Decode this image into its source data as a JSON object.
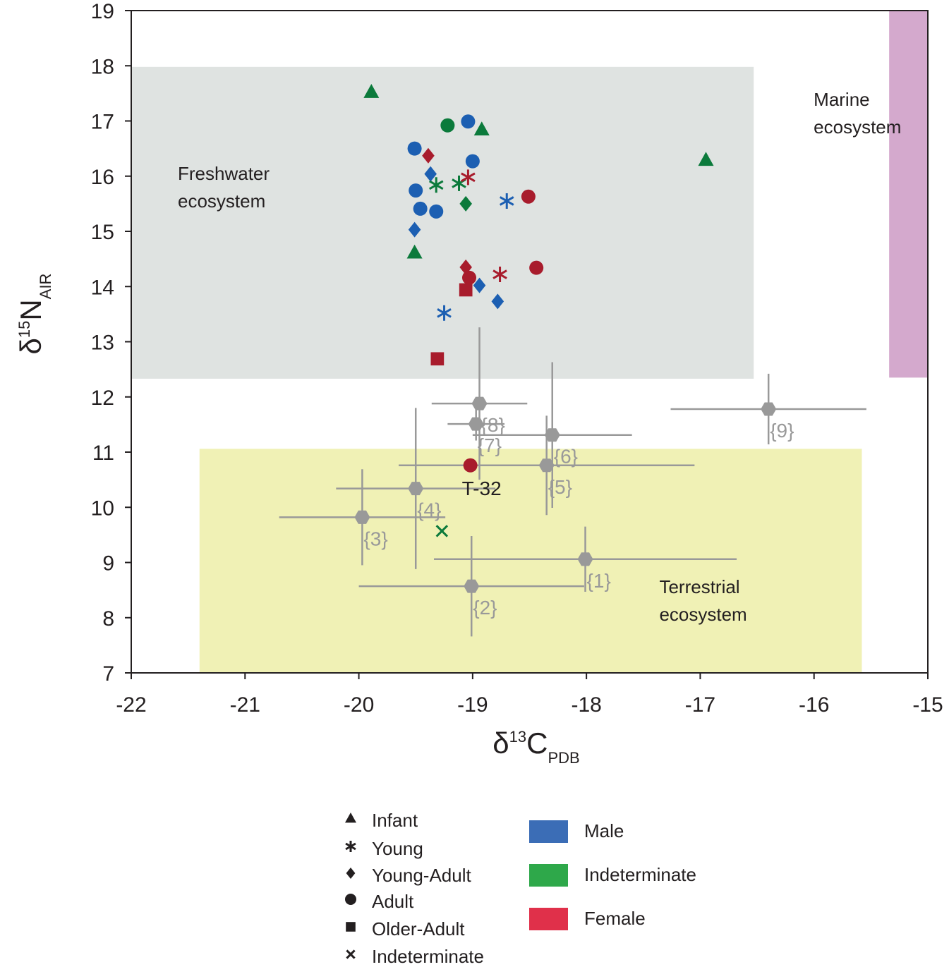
{
  "chart_data": {
    "type": "scatter",
    "x_label": {
      "base": "δ",
      "sup": "13",
      "main": "C",
      "sub": "PDB"
    },
    "y_label": {
      "base": "δ",
      "sup": "15",
      "main": "N",
      "sub": "AIR"
    },
    "xlim": [
      -22,
      -15
    ],
    "xticks": [
      -22,
      -21,
      -20,
      -19,
      -18,
      -17,
      -16,
      -15
    ],
    "ylim": [
      7,
      19
    ],
    "yticks": [
      7,
      8,
      9,
      10,
      11,
      12,
      13,
      14,
      15,
      16,
      17,
      18,
      19
    ],
    "regions": [
      {
        "lines": [
          "Freshwater",
          "ecosystem"
        ],
        "color": "#dfe3e1",
        "xlim": [
          -22,
          -16.53
        ],
        "ylim": [
          12.33,
          17.98
        ]
      },
      {
        "lines": [
          "Marine",
          "ecosystem"
        ],
        "color": "#d4a9cd",
        "xlim": [
          -15.34,
          -15
        ],
        "ylim": [
          12.35,
          19
        ]
      },
      {
        "lines": [
          "Terrestrial",
          "ecosystem"
        ],
        "color": "#f0f1b5",
        "xlim": [
          -21.4,
          -15.58
        ],
        "ylim": [
          7,
          11.06
        ]
      }
    ],
    "references": {
      "color": "#999999",
      "labels": [
        "{1}",
        "{2}",
        "{3}",
        "{4}",
        "{5}",
        "{6}",
        "{7}",
        "{8}",
        "{9}"
      ],
      "x": [
        -18.01,
        -19.01,
        -19.97,
        -19.5,
        -18.35,
        -18.3,
        -18.97,
        -18.94,
        -16.4
      ],
      "values": [
        9.06,
        8.57,
        9.82,
        10.34,
        10.76,
        11.31,
        11.51,
        11.88,
        11.78
      ],
      "xerr": [
        1.33,
        0.99,
        0.73,
        0.7,
        1.3,
        0.7,
        0.25,
        0.42,
        0.86
      ],
      "yerr": [
        0.59,
        0.91,
        0.87,
        1.46,
        0.9,
        1.32,
        0.3,
        1.38,
        0.64
      ]
    },
    "series": [
      {
        "age": "Infant",
        "sex": "Indeterminate",
        "color": "#0b7a3b",
        "x": [
          -19.89,
          -18.92,
          -16.95,
          -19.51
        ],
        "values": [
          17.53,
          16.85,
          16.3,
          14.62
        ]
      },
      {
        "age": "Adult",
        "sex": "Male",
        "color": "#1c5fb2",
        "x": [
          -19.04,
          -19.51,
          -19.0,
          -19.5,
          -19.46,
          -19.32
        ],
        "values": [
          16.99,
          16.5,
          16.27,
          15.74,
          15.41,
          15.36
        ]
      },
      {
        "age": "Adult",
        "sex": "Indeterminate",
        "color": "#0b7a3b",
        "x": [
          -19.22
        ],
        "values": [
          16.92
        ]
      },
      {
        "age": "Adult",
        "sex": "Female",
        "color": "#a81c2c",
        "x": [
          -18.51,
          -18.44,
          -19.03,
          -19.02
        ],
        "values": [
          15.63,
          14.34,
          14.16,
          10.76
        ],
        "point_labels": [
          null,
          null,
          null,
          "T-32"
        ]
      },
      {
        "age": "Young-Adult",
        "sex": "Male",
        "color": "#1c5fb2",
        "x": [
          -19.37,
          -19.51,
          -18.94,
          -18.78
        ],
        "values": [
          16.04,
          15.03,
          14.02,
          13.73
        ]
      },
      {
        "age": "Young-Adult",
        "sex": "Female",
        "color": "#a81c2c",
        "x": [
          -19.39,
          -19.06
        ],
        "values": [
          16.37,
          14.35
        ]
      },
      {
        "age": "Young-Adult",
        "sex": "Indeterminate",
        "color": "#0b7a3b",
        "x": [
          -19.06
        ],
        "values": [
          15.5
        ]
      },
      {
        "age": "Young",
        "sex": "Indeterminate",
        "color": "#0b7a3b",
        "x": [
          -19.32,
          -19.12
        ],
        "values": [
          15.84,
          15.87
        ]
      },
      {
        "age": "Young",
        "sex": "Female",
        "color": "#a81c2c",
        "x": [
          -19.04,
          -18.76
        ],
        "values": [
          15.98,
          14.22
        ]
      },
      {
        "age": "Young",
        "sex": "Male",
        "color": "#1c5fb2",
        "x": [
          -18.7,
          -19.25
        ],
        "values": [
          15.55,
          13.52
        ]
      },
      {
        "age": "Older-Adult",
        "sex": "Female",
        "color": "#a81c2c",
        "x": [
          -19.06,
          -19.31
        ],
        "values": [
          13.94,
          12.69
        ]
      },
      {
        "age": "Indeterminate",
        "sex": "Indeterminate",
        "color": "#0b7a3b",
        "x": [
          -19.27
        ],
        "values": [
          9.57
        ]
      }
    ],
    "legend_shapes": [
      {
        "label": "Infant",
        "marker": "triangle"
      },
      {
        "label": "Young",
        "marker": "asterisk"
      },
      {
        "label": "Young-Adult",
        "marker": "diamond"
      },
      {
        "label": "Adult",
        "marker": "circle"
      },
      {
        "label": "Older-Adult",
        "marker": "square"
      },
      {
        "label": "Indeterminate",
        "marker": "x"
      }
    ],
    "legend_colors": [
      {
        "label": "Male",
        "color": "#3b6db6"
      },
      {
        "label": "Indeterminate",
        "color": "#2ea84a"
      },
      {
        "label": "Female",
        "color": "#e0304a"
      }
    ]
  }
}
